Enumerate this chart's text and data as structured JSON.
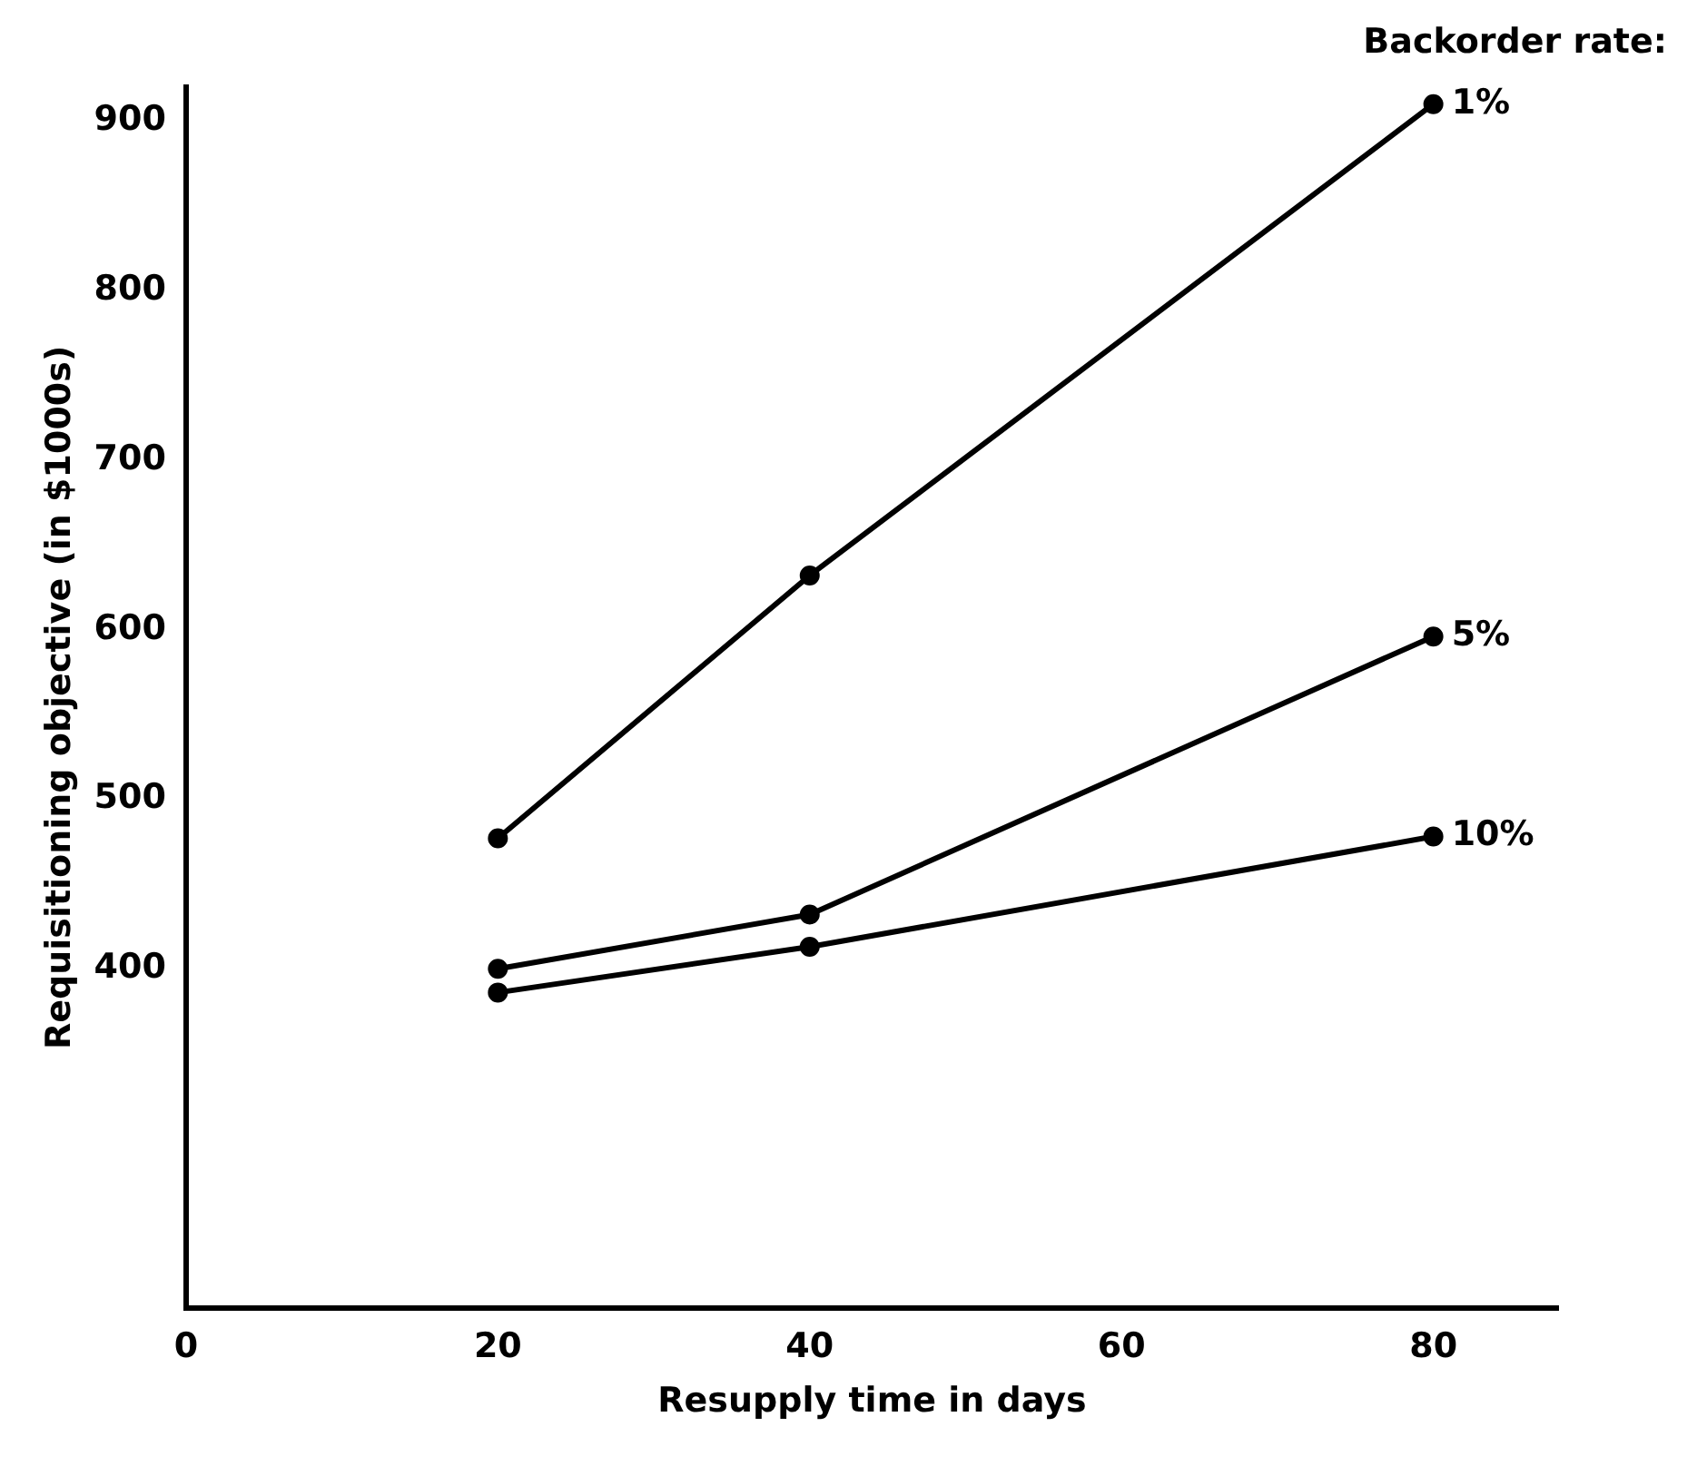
{
  "chart_data": {
    "type": "line",
    "xlabel": "Resupply time in days",
    "ylabel": "Requisitioning objective (in $1000s)",
    "legend_title": "Backorder rate:",
    "series": [
      {
        "name": "1%",
        "color": "#000000",
        "x": [
          20,
          40,
          80
        ],
        "values": [
          477,
          632,
          910
        ]
      },
      {
        "name": "5%",
        "color": "#000000",
        "x": [
          20,
          40,
          80
        ],
        "values": [
          400,
          432,
          596
        ]
      },
      {
        "name": "10%",
        "color": "#000000",
        "x": [
          20,
          40,
          80
        ],
        "values": [
          386,
          413,
          478
        ]
      }
    ],
    "xlim": [
      0,
      88
    ],
    "xticks": [
      0,
      20,
      40,
      60,
      80
    ],
    "ylim": [
      200,
      920
    ],
    "yticks": [
      400,
      500,
      600,
      700,
      800,
      900
    ],
    "grid": false,
    "legend": false,
    "marker": "circle",
    "line_style": "solid"
  }
}
